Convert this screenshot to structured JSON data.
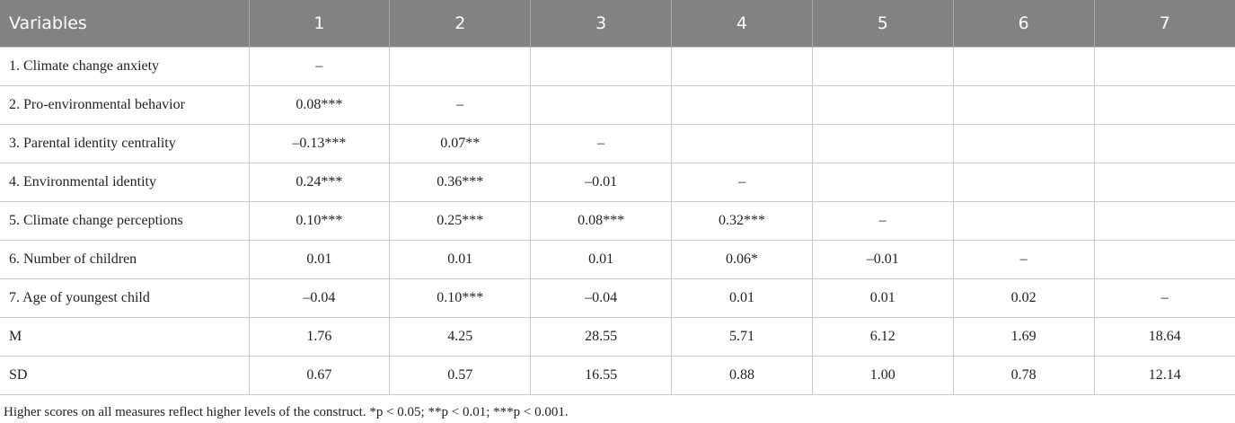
{
  "table": {
    "header": [
      "Variables",
      "1",
      "2",
      "3",
      "4",
      "5",
      "6",
      "7"
    ],
    "rows": [
      [
        "1. Climate change anxiety",
        "–",
        null,
        null,
        null,
        null,
        null,
        null
      ],
      [
        "2. Pro-environmental behavior",
        "0.08***",
        "–",
        null,
        null,
        null,
        null,
        null
      ],
      [
        "3. Parental identity centrality",
        "–0.13***",
        "0.07**",
        "–",
        null,
        null,
        null,
        null
      ],
      [
        "4. Environmental identity",
        "0.24***",
        "0.36***",
        "–0.01",
        "–",
        null,
        null,
        null
      ],
      [
        "5. Climate change perceptions",
        "0.10***",
        "0.25***",
        "0.08***",
        "0.32***",
        "–",
        null,
        null
      ],
      [
        "6. Number of children",
        "0.01",
        "0.01",
        "0.01",
        "0.06*",
        "–0.01",
        "–",
        null
      ],
      [
        "7. Age of youngest child",
        "–0.04",
        "0.10***",
        "–0.04",
        "0.01",
        "0.01",
        "0.02",
        "–"
      ],
      [
        "M",
        "1.76",
        "4.25",
        "28.55",
        "5.71",
        "6.12",
        "1.69",
        "18.64"
      ],
      [
        "SD",
        "0.67",
        "0.57",
        "16.55",
        "0.88",
        "1.00",
        "0.78",
        "12.14"
      ]
    ]
  },
  "footnote": "Higher scores on all measures reflect higher levels of the construct. *p < 0.05; **p < 0.01; ***p < 0.001."
}
